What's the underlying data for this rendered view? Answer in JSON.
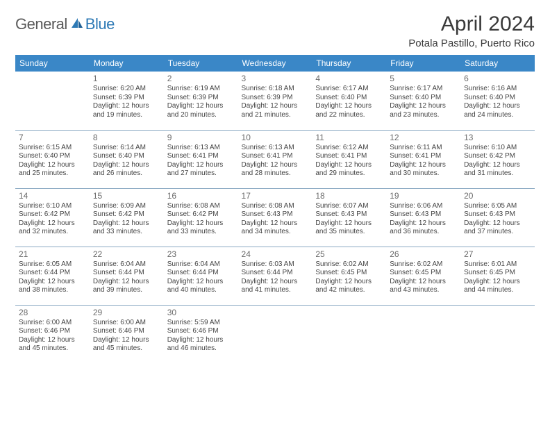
{
  "logo": {
    "general": "General",
    "blue": "Blue"
  },
  "title": "April 2024",
  "location": "Potala Pastillo, Puerto Rico",
  "colors": {
    "header_bg": "#3a87c7",
    "header_text": "#ffffff",
    "border": "#8aa9c2",
    "text": "#444444",
    "daynum": "#6b6b6b",
    "title_color": "#3a3a3a",
    "logo_gray": "#5a5a5a",
    "logo_blue": "#2d79b5",
    "background": "#ffffff"
  },
  "typography": {
    "title_fontsize": 30,
    "location_fontsize": 15,
    "dayheader_fontsize": 12,
    "daynum_fontsize": 12,
    "cell_fontsize": 10
  },
  "day_headers": [
    "Sunday",
    "Monday",
    "Tuesday",
    "Wednesday",
    "Thursday",
    "Friday",
    "Saturday"
  ],
  "weeks": [
    [
      null,
      {
        "n": "1",
        "sr": "Sunrise: 6:20 AM",
        "ss": "Sunset: 6:39 PM",
        "d1": "Daylight: 12 hours",
        "d2": "and 19 minutes."
      },
      {
        "n": "2",
        "sr": "Sunrise: 6:19 AM",
        "ss": "Sunset: 6:39 PM",
        "d1": "Daylight: 12 hours",
        "d2": "and 20 minutes."
      },
      {
        "n": "3",
        "sr": "Sunrise: 6:18 AM",
        "ss": "Sunset: 6:39 PM",
        "d1": "Daylight: 12 hours",
        "d2": "and 21 minutes."
      },
      {
        "n": "4",
        "sr": "Sunrise: 6:17 AM",
        "ss": "Sunset: 6:40 PM",
        "d1": "Daylight: 12 hours",
        "d2": "and 22 minutes."
      },
      {
        "n": "5",
        "sr": "Sunrise: 6:17 AM",
        "ss": "Sunset: 6:40 PM",
        "d1": "Daylight: 12 hours",
        "d2": "and 23 minutes."
      },
      {
        "n": "6",
        "sr": "Sunrise: 6:16 AM",
        "ss": "Sunset: 6:40 PM",
        "d1": "Daylight: 12 hours",
        "d2": "and 24 minutes."
      }
    ],
    [
      {
        "n": "7",
        "sr": "Sunrise: 6:15 AM",
        "ss": "Sunset: 6:40 PM",
        "d1": "Daylight: 12 hours",
        "d2": "and 25 minutes."
      },
      {
        "n": "8",
        "sr": "Sunrise: 6:14 AM",
        "ss": "Sunset: 6:40 PM",
        "d1": "Daylight: 12 hours",
        "d2": "and 26 minutes."
      },
      {
        "n": "9",
        "sr": "Sunrise: 6:13 AM",
        "ss": "Sunset: 6:41 PM",
        "d1": "Daylight: 12 hours",
        "d2": "and 27 minutes."
      },
      {
        "n": "10",
        "sr": "Sunrise: 6:13 AM",
        "ss": "Sunset: 6:41 PM",
        "d1": "Daylight: 12 hours",
        "d2": "and 28 minutes."
      },
      {
        "n": "11",
        "sr": "Sunrise: 6:12 AM",
        "ss": "Sunset: 6:41 PM",
        "d1": "Daylight: 12 hours",
        "d2": "and 29 minutes."
      },
      {
        "n": "12",
        "sr": "Sunrise: 6:11 AM",
        "ss": "Sunset: 6:41 PM",
        "d1": "Daylight: 12 hours",
        "d2": "and 30 minutes."
      },
      {
        "n": "13",
        "sr": "Sunrise: 6:10 AM",
        "ss": "Sunset: 6:42 PM",
        "d1": "Daylight: 12 hours",
        "d2": "and 31 minutes."
      }
    ],
    [
      {
        "n": "14",
        "sr": "Sunrise: 6:10 AM",
        "ss": "Sunset: 6:42 PM",
        "d1": "Daylight: 12 hours",
        "d2": "and 32 minutes."
      },
      {
        "n": "15",
        "sr": "Sunrise: 6:09 AM",
        "ss": "Sunset: 6:42 PM",
        "d1": "Daylight: 12 hours",
        "d2": "and 33 minutes."
      },
      {
        "n": "16",
        "sr": "Sunrise: 6:08 AM",
        "ss": "Sunset: 6:42 PM",
        "d1": "Daylight: 12 hours",
        "d2": "and 33 minutes."
      },
      {
        "n": "17",
        "sr": "Sunrise: 6:08 AM",
        "ss": "Sunset: 6:43 PM",
        "d1": "Daylight: 12 hours",
        "d2": "and 34 minutes."
      },
      {
        "n": "18",
        "sr": "Sunrise: 6:07 AM",
        "ss": "Sunset: 6:43 PM",
        "d1": "Daylight: 12 hours",
        "d2": "and 35 minutes."
      },
      {
        "n": "19",
        "sr": "Sunrise: 6:06 AM",
        "ss": "Sunset: 6:43 PM",
        "d1": "Daylight: 12 hours",
        "d2": "and 36 minutes."
      },
      {
        "n": "20",
        "sr": "Sunrise: 6:05 AM",
        "ss": "Sunset: 6:43 PM",
        "d1": "Daylight: 12 hours",
        "d2": "and 37 minutes."
      }
    ],
    [
      {
        "n": "21",
        "sr": "Sunrise: 6:05 AM",
        "ss": "Sunset: 6:44 PM",
        "d1": "Daylight: 12 hours",
        "d2": "and 38 minutes."
      },
      {
        "n": "22",
        "sr": "Sunrise: 6:04 AM",
        "ss": "Sunset: 6:44 PM",
        "d1": "Daylight: 12 hours",
        "d2": "and 39 minutes."
      },
      {
        "n": "23",
        "sr": "Sunrise: 6:04 AM",
        "ss": "Sunset: 6:44 PM",
        "d1": "Daylight: 12 hours",
        "d2": "and 40 minutes."
      },
      {
        "n": "24",
        "sr": "Sunrise: 6:03 AM",
        "ss": "Sunset: 6:44 PM",
        "d1": "Daylight: 12 hours",
        "d2": "and 41 minutes."
      },
      {
        "n": "25",
        "sr": "Sunrise: 6:02 AM",
        "ss": "Sunset: 6:45 PM",
        "d1": "Daylight: 12 hours",
        "d2": "and 42 minutes."
      },
      {
        "n": "26",
        "sr": "Sunrise: 6:02 AM",
        "ss": "Sunset: 6:45 PM",
        "d1": "Daylight: 12 hours",
        "d2": "and 43 minutes."
      },
      {
        "n": "27",
        "sr": "Sunrise: 6:01 AM",
        "ss": "Sunset: 6:45 PM",
        "d1": "Daylight: 12 hours",
        "d2": "and 44 minutes."
      }
    ],
    [
      {
        "n": "28",
        "sr": "Sunrise: 6:00 AM",
        "ss": "Sunset: 6:46 PM",
        "d1": "Daylight: 12 hours",
        "d2": "and 45 minutes."
      },
      {
        "n": "29",
        "sr": "Sunrise: 6:00 AM",
        "ss": "Sunset: 6:46 PM",
        "d1": "Daylight: 12 hours",
        "d2": "and 45 minutes."
      },
      {
        "n": "30",
        "sr": "Sunrise: 5:59 AM",
        "ss": "Sunset: 6:46 PM",
        "d1": "Daylight: 12 hours",
        "d2": "and 46 minutes."
      },
      null,
      null,
      null,
      null
    ]
  ]
}
